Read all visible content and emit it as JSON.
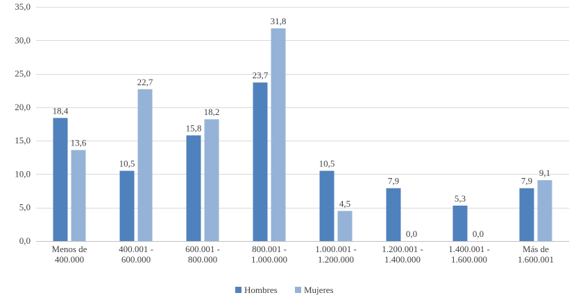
{
  "chart_data": {
    "type": "bar",
    "categories": [
      [
        "Menos de",
        "400.000"
      ],
      [
        "400.001 -",
        "600.000"
      ],
      [
        "600.001 -",
        "800.000"
      ],
      [
        "800.001 -",
        "1.000.000"
      ],
      [
        "1.000.001 -",
        "1.200.000"
      ],
      [
        "1.200.001 -",
        "1.400.000"
      ],
      [
        "1.400.001 -",
        "1.600.000"
      ],
      [
        "Más de",
        "1.600.001"
      ]
    ],
    "series": [
      {
        "name": "Hombres",
        "color": "#4f81bd",
        "values": [
          18.4,
          10.5,
          15.8,
          23.7,
          10.5,
          7.9,
          5.3,
          7.9
        ],
        "labels": [
          "18,4",
          "10,5",
          "15,8",
          "23,7",
          "10,5",
          "7,9",
          "5,3",
          "7,9"
        ]
      },
      {
        "name": "Mujeres",
        "color": "#95b3d7",
        "values": [
          13.6,
          22.7,
          18.2,
          31.8,
          4.5,
          0.0,
          0.0,
          9.1
        ],
        "labels": [
          "13,6",
          "22,7",
          "18,2",
          "31,8",
          "4,5",
          "0,0",
          "0,0",
          "9,1"
        ]
      }
    ],
    "y_ticks": [
      0,
      5,
      10,
      15,
      20,
      25,
      30,
      35
    ],
    "y_tick_labels": [
      "0,0",
      "5,0",
      "10,0",
      "15,0",
      "20,0",
      "25,0",
      "30,0",
      "35,0"
    ],
    "ylim": [
      0,
      35
    ],
    "grid": true,
    "legend_position": "bottom",
    "title": "",
    "xlabel": "",
    "ylabel": ""
  }
}
